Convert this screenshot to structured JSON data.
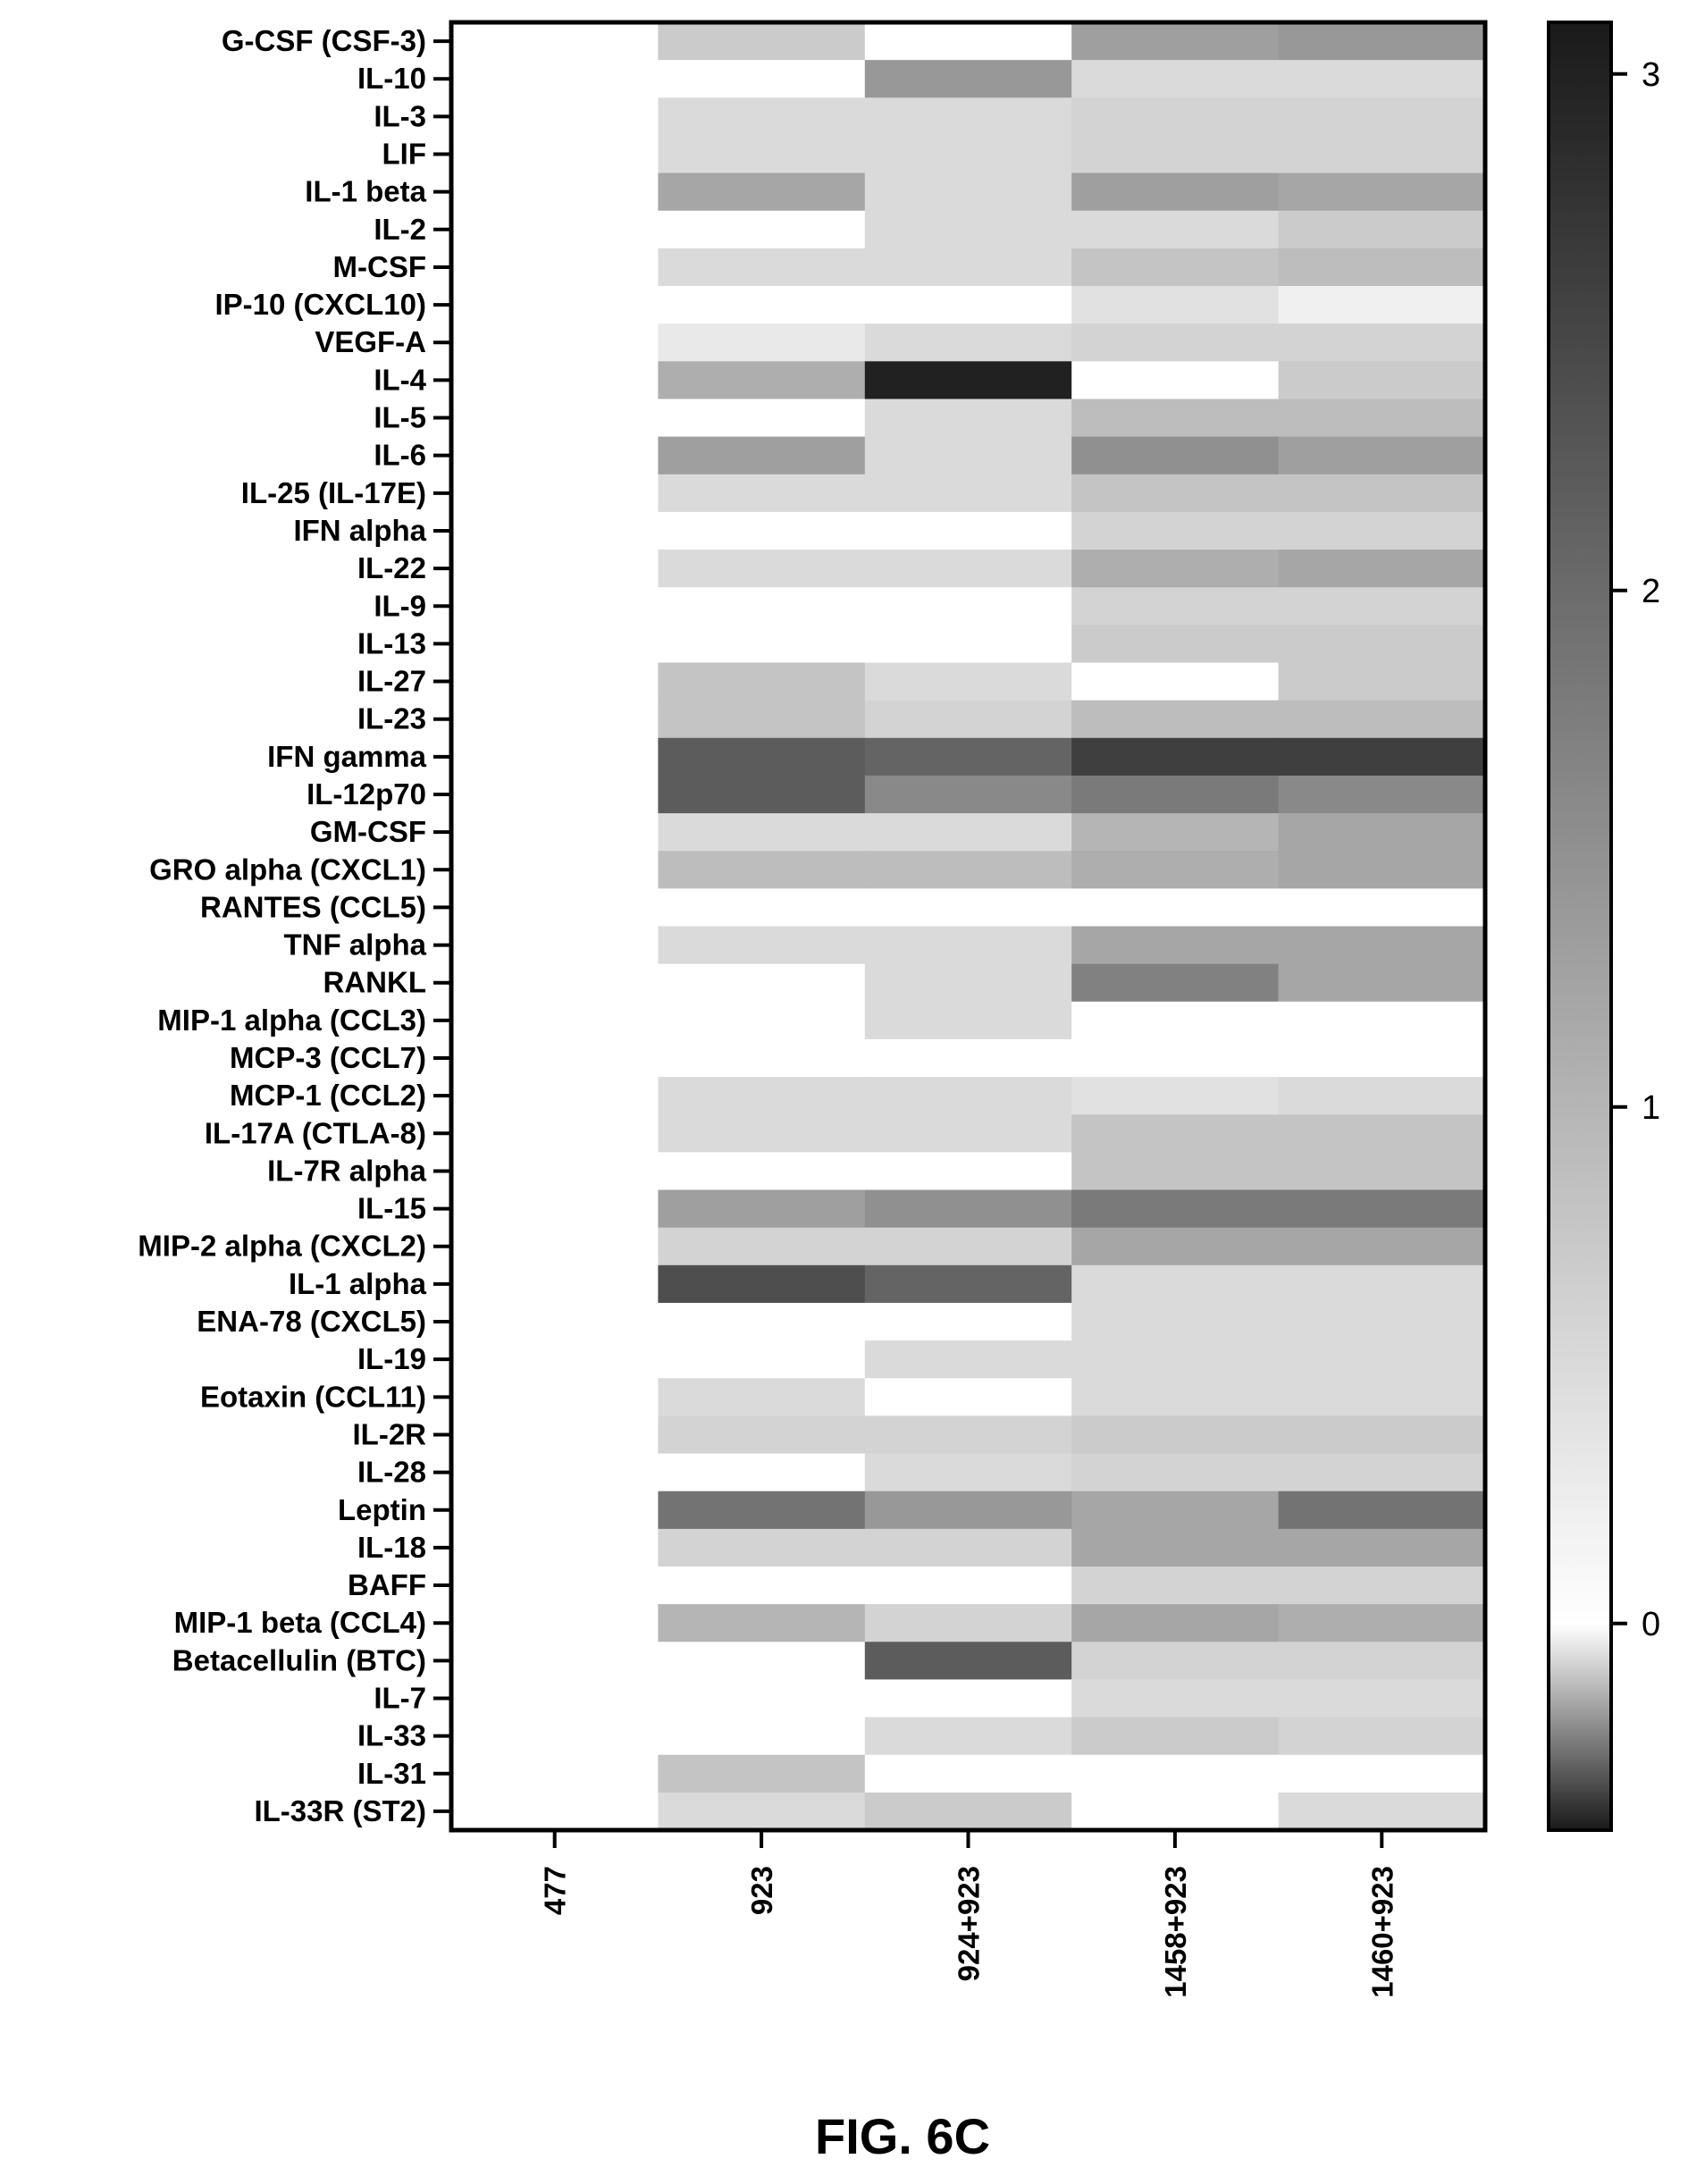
{
  "caption": "FIG. 6C",
  "chart_data": {
    "type": "heatmap",
    "title": "",
    "xlabel": "",
    "ylabel": "",
    "columns": [
      "477",
      "923",
      "924+923",
      "1458+923",
      "1460+923"
    ],
    "rows": [
      "G-CSF (CSF-3)",
      "IL-10",
      "IL-3",
      "LIF",
      "IL-1 beta",
      "IL-2",
      "M-CSF",
      "IP-10 (CXCL10)",
      "VEGF-A",
      "IL-4",
      "IL-5",
      "IL-6",
      "IL-25 (IL-17E)",
      "IFN alpha",
      "IL-22",
      "IL-9",
      "IL-13",
      "IL-27",
      "IL-23",
      "IFN gamma",
      "IL-12p70",
      "GM-CSF",
      "GRO alpha (CXCL1)",
      "RANTES (CCL5)",
      "TNF alpha",
      "RANKL",
      "MIP-1 alpha (CCL3)",
      "MCP-3 (CCL7)",
      "MCP-1 (CCL2)",
      "IL-17A (CTLA-8)",
      "IL-7R alpha",
      "IL-15",
      "MIP-2 alpha (CXCL2)",
      "IL-1 alpha",
      "ENA-78 (CXCL5)",
      "IL-19",
      "Eotaxin (CCL11)",
      "IL-2R",
      "IL-28",
      "Leptin",
      "IL-18",
      "BAFF",
      "MIP-1 beta (CCL4)",
      "Betacellulin (BTC)",
      "IL-7",
      "IL-33",
      "IL-31",
      "IL-33R (ST2)"
    ],
    "values": [
      [
        0,
        0.7,
        0,
        1.3,
        1.4
      ],
      [
        0,
        0,
        1.4,
        0.5,
        0.5
      ],
      [
        0,
        0.5,
        0.5,
        0.6,
        0.6
      ],
      [
        0,
        0.5,
        0.5,
        0.6,
        0.6
      ],
      [
        0,
        1.2,
        0.5,
        1.3,
        1.2
      ],
      [
        0,
        0,
        0.5,
        0.5,
        0.7
      ],
      [
        0,
        0.5,
        0.5,
        0.8,
        0.9
      ],
      [
        0,
        0,
        0,
        0.4,
        0.2
      ],
      [
        0,
        0.3,
        0.5,
        0.6,
        0.6
      ],
      [
        0,
        1.1,
        3.0,
        0,
        0.7
      ],
      [
        0,
        0,
        0.5,
        0.9,
        0.9
      ],
      [
        0,
        1.3,
        0.5,
        1.5,
        1.3
      ],
      [
        0,
        0.5,
        0.5,
        0.8,
        0.8
      ],
      [
        0,
        0,
        0,
        0.6,
        0.6
      ],
      [
        0,
        0.5,
        0.5,
        1.1,
        1.2
      ],
      [
        0,
        0,
        0,
        0.6,
        0.6
      ],
      [
        0,
        0,
        0,
        0.7,
        0.7
      ],
      [
        0,
        0.8,
        0.5,
        0,
        0.7
      ],
      [
        0,
        0.8,
        0.6,
        0.9,
        0.9
      ],
      [
        0,
        2.2,
        2.1,
        2.6,
        2.6
      ],
      [
        0,
        2.2,
        1.6,
        1.8,
        1.6
      ],
      [
        0,
        0.5,
        0.5,
        1.0,
        1.2
      ],
      [
        0,
        0.9,
        0.9,
        1.1,
        1.2
      ],
      [
        0,
        0,
        0,
        0,
        0
      ],
      [
        0,
        0.5,
        0.5,
        1.2,
        1.2
      ],
      [
        0,
        0,
        0.5,
        1.7,
        1.2
      ],
      [
        0,
        0,
        0.5,
        0,
        0
      ],
      [
        0,
        0,
        0,
        0,
        0
      ],
      [
        0,
        0.5,
        0.5,
        0.4,
        0.5
      ],
      [
        0,
        0.5,
        0.5,
        0.8,
        0.8
      ],
      [
        0,
        0,
        0,
        0.8,
        0.8
      ],
      [
        0,
        1.3,
        1.5,
        1.8,
        1.8
      ],
      [
        0,
        0.6,
        0.6,
        1.2,
        1.2
      ],
      [
        0,
        2.4,
        2.1,
        0.5,
        0.5
      ],
      [
        0,
        0,
        0,
        0.5,
        0.5
      ],
      [
        0,
        0,
        0.5,
        0.5,
        0.5
      ],
      [
        0,
        0.5,
        0,
        0.5,
        0.5
      ],
      [
        0,
        0.6,
        0.6,
        0.7,
        0.7
      ],
      [
        0,
        0,
        0.5,
        0.6,
        0.6
      ],
      [
        0,
        1.9,
        1.4,
        1.2,
        1.9
      ],
      [
        0,
        0.6,
        0.6,
        1.2,
        1.2
      ],
      [
        0,
        0,
        0,
        0.6,
        0.6
      ],
      [
        0,
        1.0,
        0.6,
        1.2,
        1.1
      ],
      [
        0,
        0,
        2.2,
        0.6,
        0.6
      ],
      [
        0,
        0,
        0,
        0.5,
        0.5
      ],
      [
        0,
        0,
        0.5,
        0.7,
        0.6
      ],
      [
        0,
        0.8,
        0,
        0,
        0
      ],
      [
        0,
        0.5,
        0.7,
        0,
        0.5
      ]
    ],
    "colorbar": {
      "min": -0.4,
      "max": 3.1,
      "ticks": [
        "0",
        "1",
        "2",
        "3"
      ],
      "tick_values": [
        0,
        1,
        2,
        3
      ]
    },
    "colors": {
      "low": "#ffffff",
      "high": "#1a1a1a",
      "negative_end": "#1a1a1a"
    },
    "grid": false,
    "legend": "right"
  }
}
